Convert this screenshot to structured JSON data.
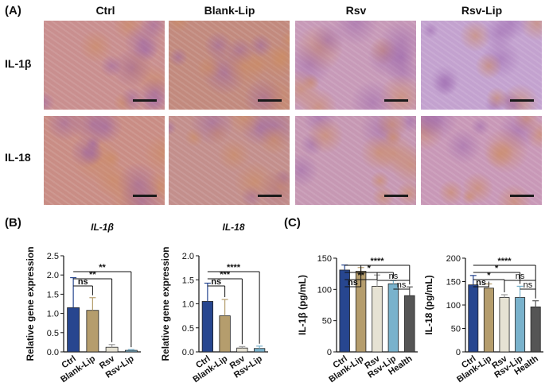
{
  "panelA": {
    "letter": "(A)",
    "columns": [
      "Ctrl",
      "Blank-Lip",
      "Rsv",
      "Rsv-Lip"
    ],
    "rows": [
      "IL-1β",
      "IL-18"
    ],
    "tiles": [
      [
        "#c98f8f",
        "#c28a7e",
        "#c79ab8",
        "#c3a2cf"
      ],
      [
        "#c98d85",
        "#c38f8c",
        "#c698b3",
        "#c898b7"
      ]
    ]
  },
  "panelB": {
    "letter": "(B)"
  },
  "panelC": {
    "letter": "(C)"
  },
  "colors": {
    "Ctrl": "#27468f",
    "Blank-Lip": "#b59d6d",
    "Rsv": "#e6e2d3",
    "Rsv-Lip": "#79b2cc",
    "Health": "#555555"
  },
  "chart_data": [
    {
      "id": "B1",
      "type": "bar",
      "title": "IL-1β",
      "ylabel": "Relative gene expression",
      "categories": [
        "Ctrl",
        "Blank-Lip",
        "Rsv",
        "Rsv-Lip"
      ],
      "values": [
        1.15,
        1.08,
        0.12,
        0.04
      ],
      "errors": [
        0.78,
        0.33,
        0.07,
        0.02
      ],
      "ylim": [
        0,
        2.5
      ],
      "yticks": [
        "0.0",
        "0.5",
        "1.0",
        "1.5",
        "2.0",
        "2.5"
      ],
      "significance": [
        {
          "from": "Ctrl",
          "to": "Blank-Lip",
          "label": "ns"
        },
        {
          "from": "Ctrl",
          "to": "Rsv",
          "label": "**"
        },
        {
          "from": "Ctrl",
          "to": "Rsv-Lip",
          "label": "**"
        }
      ]
    },
    {
      "id": "B2",
      "type": "bar",
      "title": "IL-18",
      "ylabel": "Relative gene expression",
      "categories": [
        "Ctrl",
        "Blank-Lip",
        "Rsv",
        "Rsv-Lip"
      ],
      "values": [
        1.05,
        0.75,
        0.08,
        0.07
      ],
      "errors": [
        0.38,
        0.34,
        0.03,
        0.05
      ],
      "ylim": [
        0,
        2.0
      ],
      "yticks": [
        "0.0",
        "0.5",
        "1.0",
        "1.5",
        "2.0"
      ],
      "significance": [
        {
          "from": "Ctrl",
          "to": "Blank-Lip",
          "label": "ns"
        },
        {
          "from": "Ctrl",
          "to": "Rsv",
          "label": "***"
        },
        {
          "from": "Ctrl",
          "to": "Rsv-Lip",
          "label": "****"
        }
      ]
    },
    {
      "id": "C1",
      "type": "bar",
      "ylabel": "IL-1β (pg/mL)",
      "categories": [
        "Ctrl",
        "Blank-Lip",
        "Rsv",
        "Rsv-Lip",
        "Health"
      ],
      "values": [
        131,
        129,
        105,
        109,
        90
      ],
      "errors": [
        8,
        6,
        18,
        5,
        14
      ],
      "ylim": [
        0,
        150
      ],
      "yticks": [
        "0",
        "50",
        "100",
        "150"
      ],
      "significance": [
        {
          "from": "Ctrl",
          "to": "Blank-Lip",
          "label": "ns"
        },
        {
          "from": "Ctrl",
          "to": "Rsv",
          "label": "**"
        },
        {
          "from": "Ctrl",
          "to": "Rsv-Lip",
          "label": "*"
        },
        {
          "from": "Ctrl",
          "to": "Health",
          "label": "****"
        },
        {
          "from": "Rsv",
          "to": "Health",
          "label": "ns"
        },
        {
          "from": "Rsv-Lip",
          "to": "Health",
          "label": "ns"
        }
      ]
    },
    {
      "id": "C2",
      "type": "bar",
      "ylabel": "IL-18 (pg/mL)",
      "categories": [
        "Ctrl",
        "Blank-Lip",
        "Rsv",
        "Rsv-Lip",
        "Health"
      ],
      "values": [
        143,
        136,
        116,
        116,
        96
      ],
      "errors": [
        20,
        9,
        6,
        24,
        13
      ],
      "ylim": [
        0,
        200
      ],
      "yticks": [
        "0",
        "50",
        "100",
        "150",
        "200"
      ],
      "significance": [
        {
          "from": "Ctrl",
          "to": "Blank-Lip",
          "label": "ns"
        },
        {
          "from": "Ctrl",
          "to": "Rsv",
          "label": "*"
        },
        {
          "from": "Ctrl",
          "to": "Rsv-Lip",
          "label": "*"
        },
        {
          "from": "Ctrl",
          "to": "Health",
          "label": "****"
        },
        {
          "from": "Rsv",
          "to": "Health",
          "label": "ns"
        },
        {
          "from": "Rsv-Lip",
          "to": "Health",
          "label": "ns"
        }
      ]
    }
  ]
}
